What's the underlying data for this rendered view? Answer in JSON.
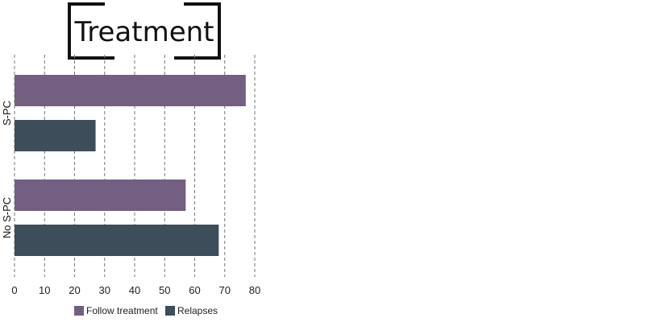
{
  "chart_data": {
    "type": "bar",
    "orientation": "horizontal",
    "title": "Treatment",
    "categories": [
      "S-PC",
      "No S-PC"
    ],
    "series": [
      {
        "name": "Follow treatment",
        "values": [
          77,
          57
        ],
        "color": "#735f82"
      },
      {
        "name": "Relapses",
        "values": [
          27,
          68
        ],
        "color": "#3d4d5a"
      }
    ],
    "xlim": [
      0,
      80
    ],
    "xticks": [
      "0",
      "10",
      "20",
      "30",
      "40",
      "50",
      "60",
      "70",
      "80"
    ],
    "grid": true,
    "legend_position": "bottom"
  }
}
